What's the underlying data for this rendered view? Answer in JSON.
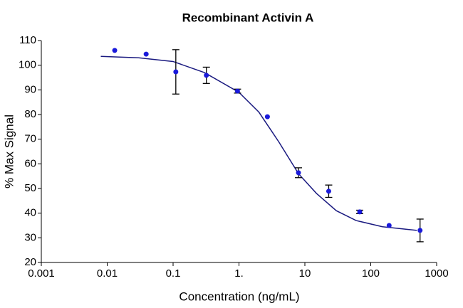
{
  "chart_data": {
    "type": "scatter",
    "title": "Recombinant Activin A",
    "x_label": "Concentration (ng/mL)",
    "y_label": "% Max Signal",
    "x": [
      0.013,
      0.039,
      0.11,
      0.32,
      0.95,
      2.7,
      8,
      23,
      68,
      190,
      560
    ],
    "values": [
      106,
      104.5,
      97.3,
      95.9,
      89.5,
      79.1,
      56.4,
      48.9,
      40.5,
      35,
      33
    ],
    "errors": [
      null,
      null,
      9,
      3.3,
      0.8,
      null,
      2,
      2.5,
      0.7,
      null,
      4.6
    ],
    "color": "#1a1adb",
    "fit": {
      "x": [
        0.008,
        0.03,
        0.1,
        0.3,
        1,
        2,
        4,
        8,
        15,
        30,
        60,
        150,
        500
      ],
      "values": [
        103.6,
        103,
        101.5,
        97,
        89,
        81,
        69,
        56,
        48,
        41,
        37,
        34.5,
        33
      ],
      "color": "#1a1a80"
    },
    "xlog": true,
    "xlim": [
      0.001,
      1000
    ],
    "xticks": [
      0.001,
      0.01,
      0.1,
      {
        "value": 1,
        "label": "1."
      },
      10,
      100,
      1000
    ],
    "ylim": [
      20,
      110
    ],
    "yticks": [
      20,
      30,
      40,
      50,
      60,
      70,
      80,
      90,
      100,
      110
    ],
    "grid": false
  }
}
